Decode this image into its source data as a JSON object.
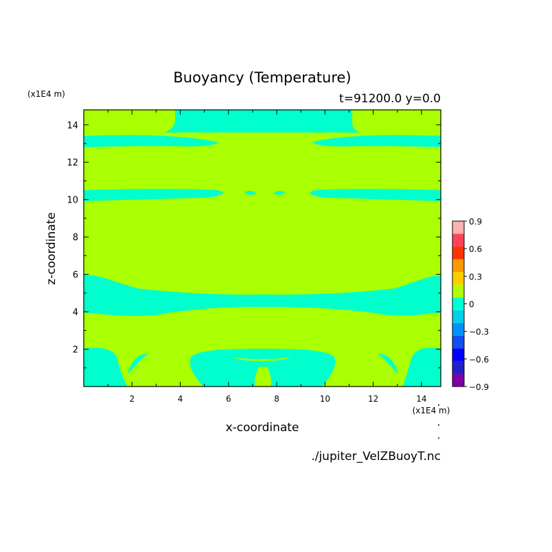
{
  "chart_data": {
    "type": "contour",
    "title": "Buoyancy (Temperature)",
    "subtitle": "t=91200.0 y=0.0",
    "xlabel": "x-coordinate",
    "ylabel": "z-coordinate",
    "x_unit": "(x1E4 m)",
    "y_unit": "(x1E4 m)",
    "xlim": [
      0,
      14.8
    ],
    "ylim": [
      0,
      14.8
    ],
    "xticks": [
      "2",
      "4",
      "6",
      "8",
      "10",
      "12",
      "14"
    ],
    "yticks": [
      "2",
      "4",
      "6",
      "8",
      "10",
      "12",
      "14"
    ],
    "colorbar": {
      "levels": [
        -0.9,
        -0.75,
        -0.6,
        -0.45,
        -0.3,
        -0.15,
        0,
        0.15,
        0.3,
        0.45,
        0.6,
        0.75,
        0.9
      ],
      "tick_labels": [
        "0.9",
        "0.6",
        "0.3",
        "0",
        "−0.3",
        "−0.6",
        "−0.9"
      ],
      "colors": [
        "#7b00a8",
        "#2020c8",
        "#0000ff",
        "#1050f0",
        "#0090ff",
        "#00d0e8",
        "#00ffd0",
        "#b0ff00",
        "#ffcc00",
        "#ff9900",
        "#ff3300",
        "#ff4455",
        "#ffb0b0"
      ]
    },
    "field_colors": {
      "background": "#aaff00",
      "negative": "#00ffcc"
    },
    "dominant_range": [
      -0.15,
      0.15
    ]
  },
  "footer": {
    "source": "./jupiter_VelZBuoyT.nc"
  }
}
